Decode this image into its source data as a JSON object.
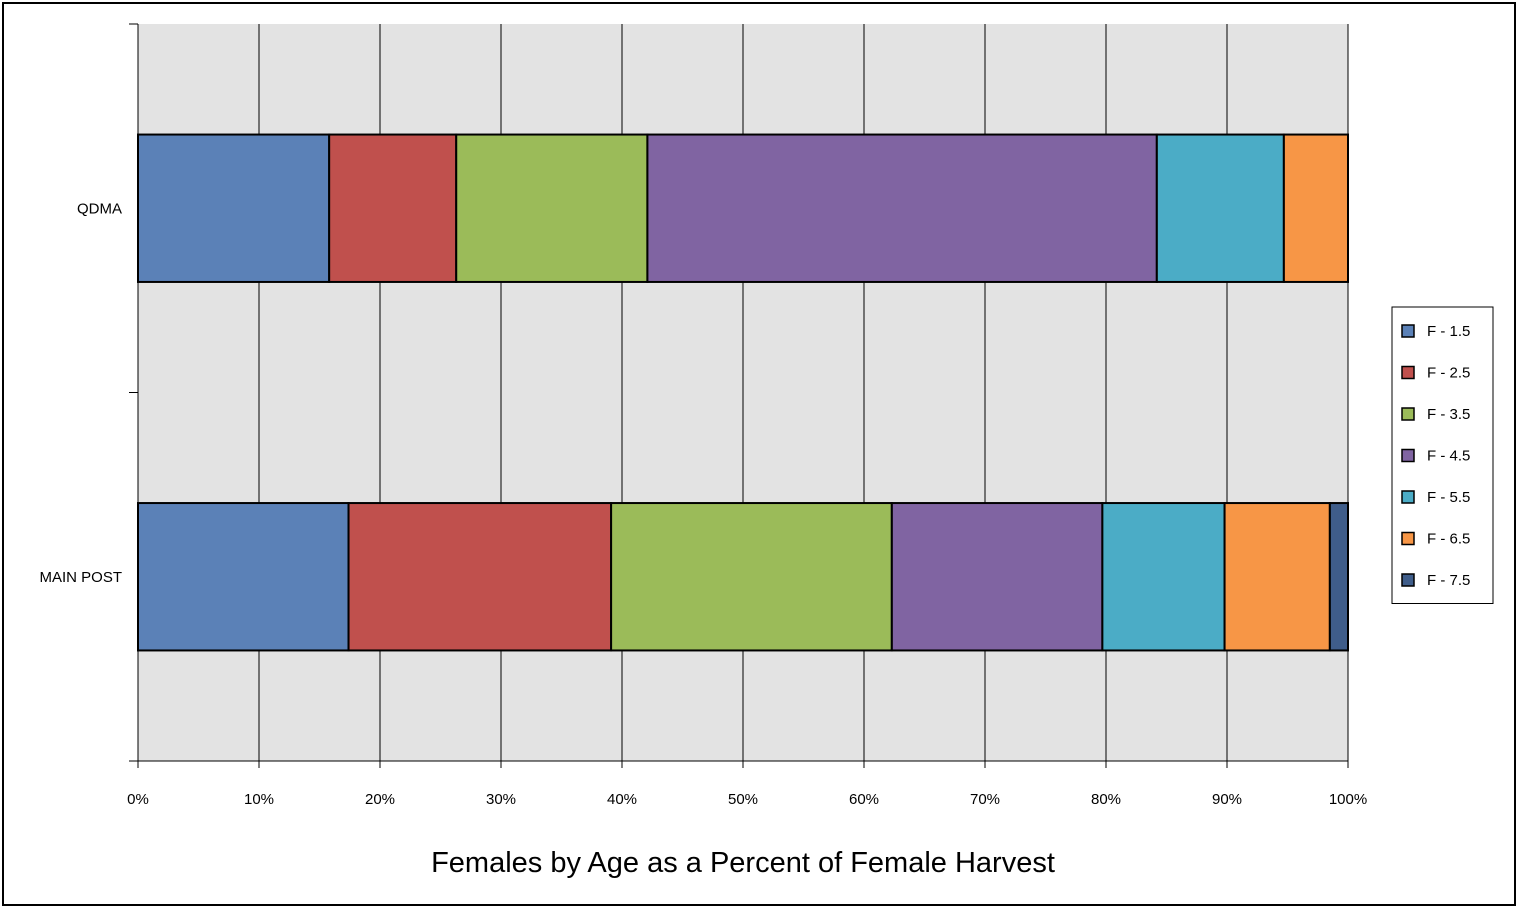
{
  "chart_data": {
    "type": "bar",
    "orientation": "horizontal",
    "stacked": "percent",
    "title": "Females by Age as a Percent of Female Harvest",
    "xlabel": "",
    "ylabel": "",
    "xlim": [
      0,
      100
    ],
    "x_ticks": [
      "0%",
      "10%",
      "20%",
      "30%",
      "40%",
      "50%",
      "60%",
      "70%",
      "80%",
      "90%",
      "100%"
    ],
    "grid": true,
    "legend": "right",
    "categories": [
      "QDMA",
      "MAIN POST"
    ],
    "series": [
      {
        "name": "F - 1.5",
        "color": "#5b81b7",
        "values": [
          15.8,
          17.4
        ]
      },
      {
        "name": "F - 2.5",
        "color": "#c0504d",
        "values": [
          10.5,
          21.7
        ]
      },
      {
        "name": "F - 3.5",
        "color": "#9bbb59",
        "values": [
          15.8,
          23.2
        ]
      },
      {
        "name": "F - 4.5",
        "color": "#8064a2",
        "values": [
          42.1,
          17.4
        ]
      },
      {
        "name": "F - 5.5",
        "color": "#4bacc6",
        "values": [
          10.5,
          10.1
        ]
      },
      {
        "name": "F - 6.5",
        "color": "#f79646",
        "values": [
          5.3,
          8.7
        ]
      },
      {
        "name": "F - 7.5",
        "color": "#3f5d8a",
        "values": [
          0,
          1.5
        ]
      }
    ]
  }
}
